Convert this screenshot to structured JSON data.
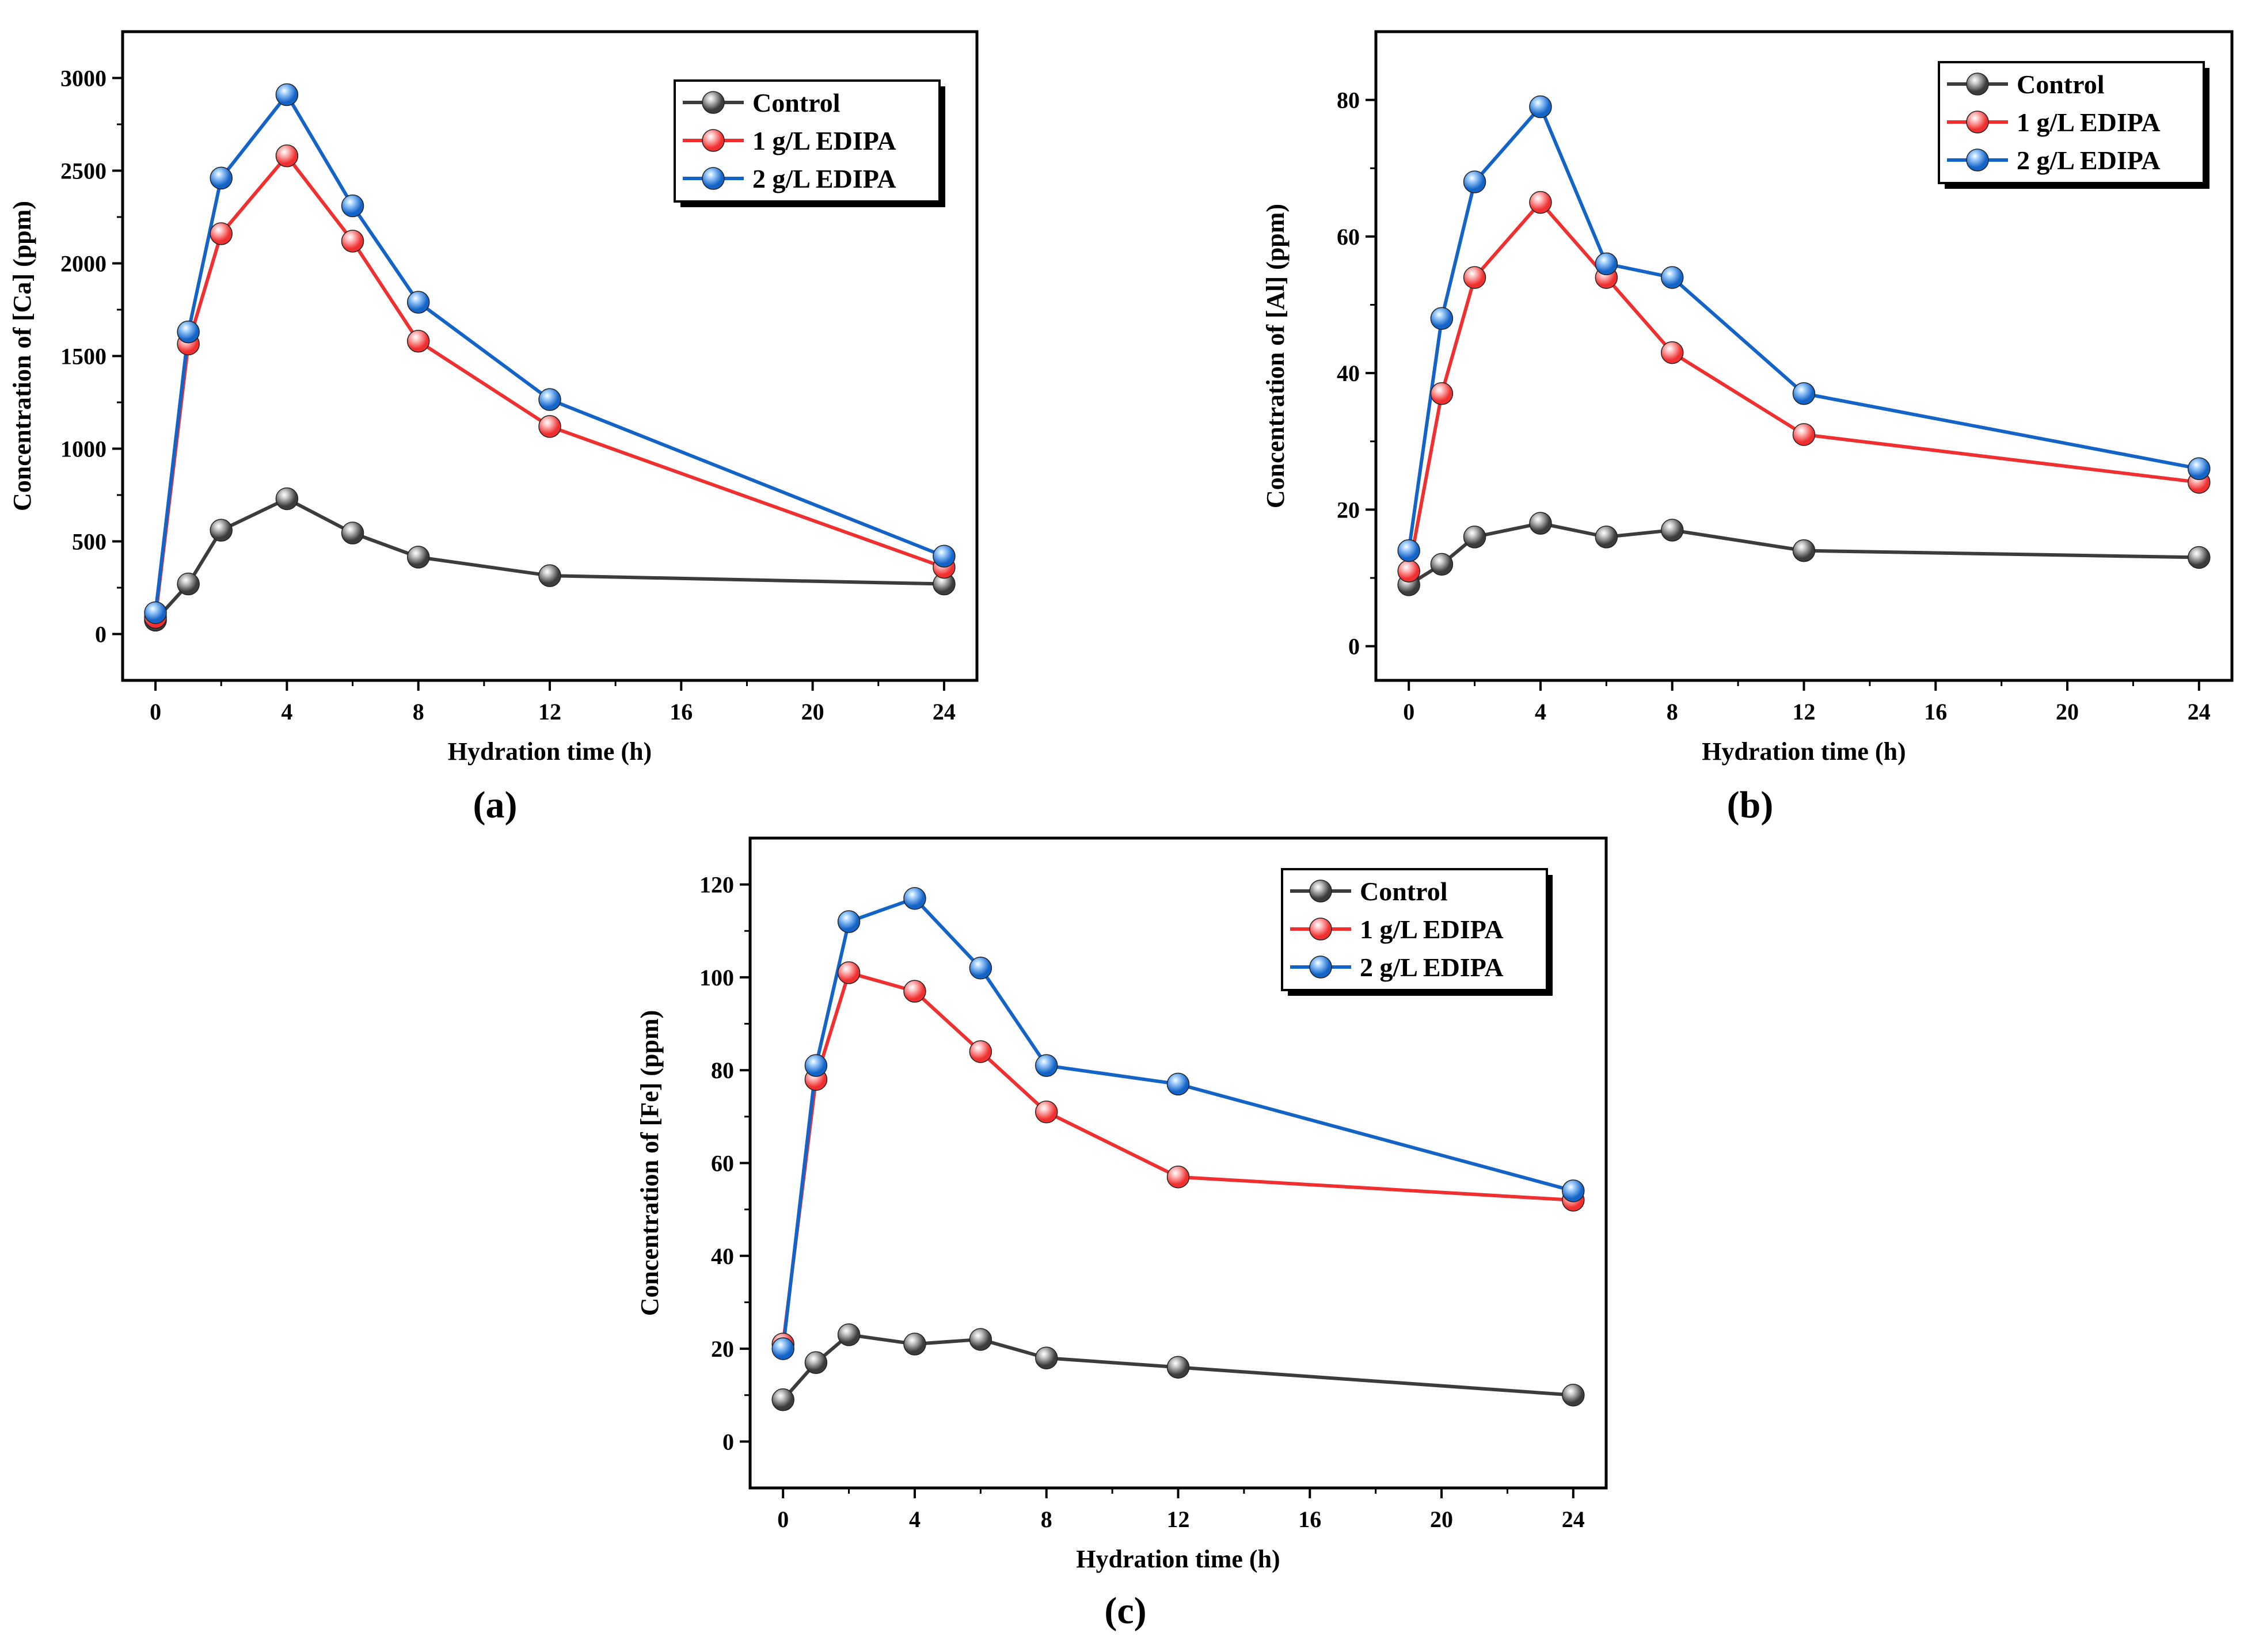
{
  "figure_title": "",
  "series_style": {
    "Control": {
      "color": "#3c3c3c",
      "marker_light": "#d0d0d0"
    },
    "1 g/L EDIPA": {
      "color": "#f03030",
      "marker_light": "#ffc8c8"
    },
    "2 g/L EDIPA": {
      "color": "#1464c8",
      "marker_light": "#aad4ff"
    }
  },
  "chart_data": [
    {
      "type": "line",
      "panel_label_pre": "(",
      "panel_letter": "a",
      "panel_label_post": ")",
      "xlabel": "Hydration time (h)",
      "ylabel": "Concentration of [Ca] (ppm)",
      "xlim": [
        -1,
        25
      ],
      "ylim": [
        -250,
        3250
      ],
      "xticks": [
        0,
        4,
        8,
        12,
        16,
        20,
        24
      ],
      "yticks": [
        0,
        500,
        1000,
        1500,
        2000,
        2500,
        3000
      ],
      "legend_position": "top-right",
      "x": [
        0,
        1,
        2,
        4,
        6,
        8,
        12,
        24
      ],
      "series": [
        {
          "name": "Control",
          "values": [
            75,
            270,
            560,
            730,
            545,
            415,
            315,
            270
          ]
        },
        {
          "name": "1 g/L EDIPA",
          "values": [
            90,
            1565,
            2160,
            2580,
            2120,
            1580,
            1120,
            360
          ]
        },
        {
          "name": "2 g/L EDIPA",
          "values": [
            115,
            1630,
            2460,
            2910,
            2310,
            1790,
            1265,
            420
          ]
        }
      ]
    },
    {
      "type": "line",
      "panel_label_pre": "(",
      "panel_letter": "b",
      "panel_label_post": ")",
      "xlabel": "Hydration time (h)",
      "ylabel": "Concentration of [Al] (ppm)",
      "xlim": [
        -1,
        25
      ],
      "ylim": [
        -5,
        90
      ],
      "xticks": [
        0,
        4,
        8,
        12,
        16,
        20,
        24
      ],
      "yticks": [
        0,
        20,
        40,
        60,
        80
      ],
      "legend_position": "top-right",
      "x": [
        0,
        1,
        2,
        4,
        6,
        8,
        12,
        24
      ],
      "series": [
        {
          "name": "Control",
          "values": [
            9,
            12,
            16,
            18,
            16,
            17,
            14,
            13
          ]
        },
        {
          "name": "1 g/L EDIPA",
          "values": [
            11,
            37,
            54,
            65,
            54,
            43,
            31,
            24
          ]
        },
        {
          "name": "2 g/L EDIPA",
          "values": [
            14,
            48,
            68,
            79,
            56,
            54,
            37,
            26
          ]
        }
      ]
    },
    {
      "type": "line",
      "panel_label_pre": "(",
      "panel_letter": "c",
      "panel_label_post": ")",
      "xlabel": "Hydration time (h)",
      "ylabel": "Concentration of [Fe] (ppm)",
      "xlim": [
        -1,
        25
      ],
      "ylim": [
        -10,
        130
      ],
      "xticks": [
        0,
        4,
        8,
        12,
        16,
        20,
        24
      ],
      "yticks": [
        0,
        20,
        40,
        60,
        80,
        100,
        120
      ],
      "legend_position": "top-right",
      "x": [
        0,
        1,
        2,
        4,
        6,
        8,
        12,
        24
      ],
      "series": [
        {
          "name": "Control",
          "values": [
            9,
            17,
            23,
            21,
            22,
            18,
            16,
            10
          ]
        },
        {
          "name": "1 g/L EDIPA",
          "values": [
            21,
            78,
            101,
            97,
            84,
            71,
            57,
            52
          ]
        },
        {
          "name": "2 g/L EDIPA",
          "values": [
            20,
            81,
            112,
            117,
            102,
            81,
            77,
            54
          ]
        }
      ]
    }
  ]
}
